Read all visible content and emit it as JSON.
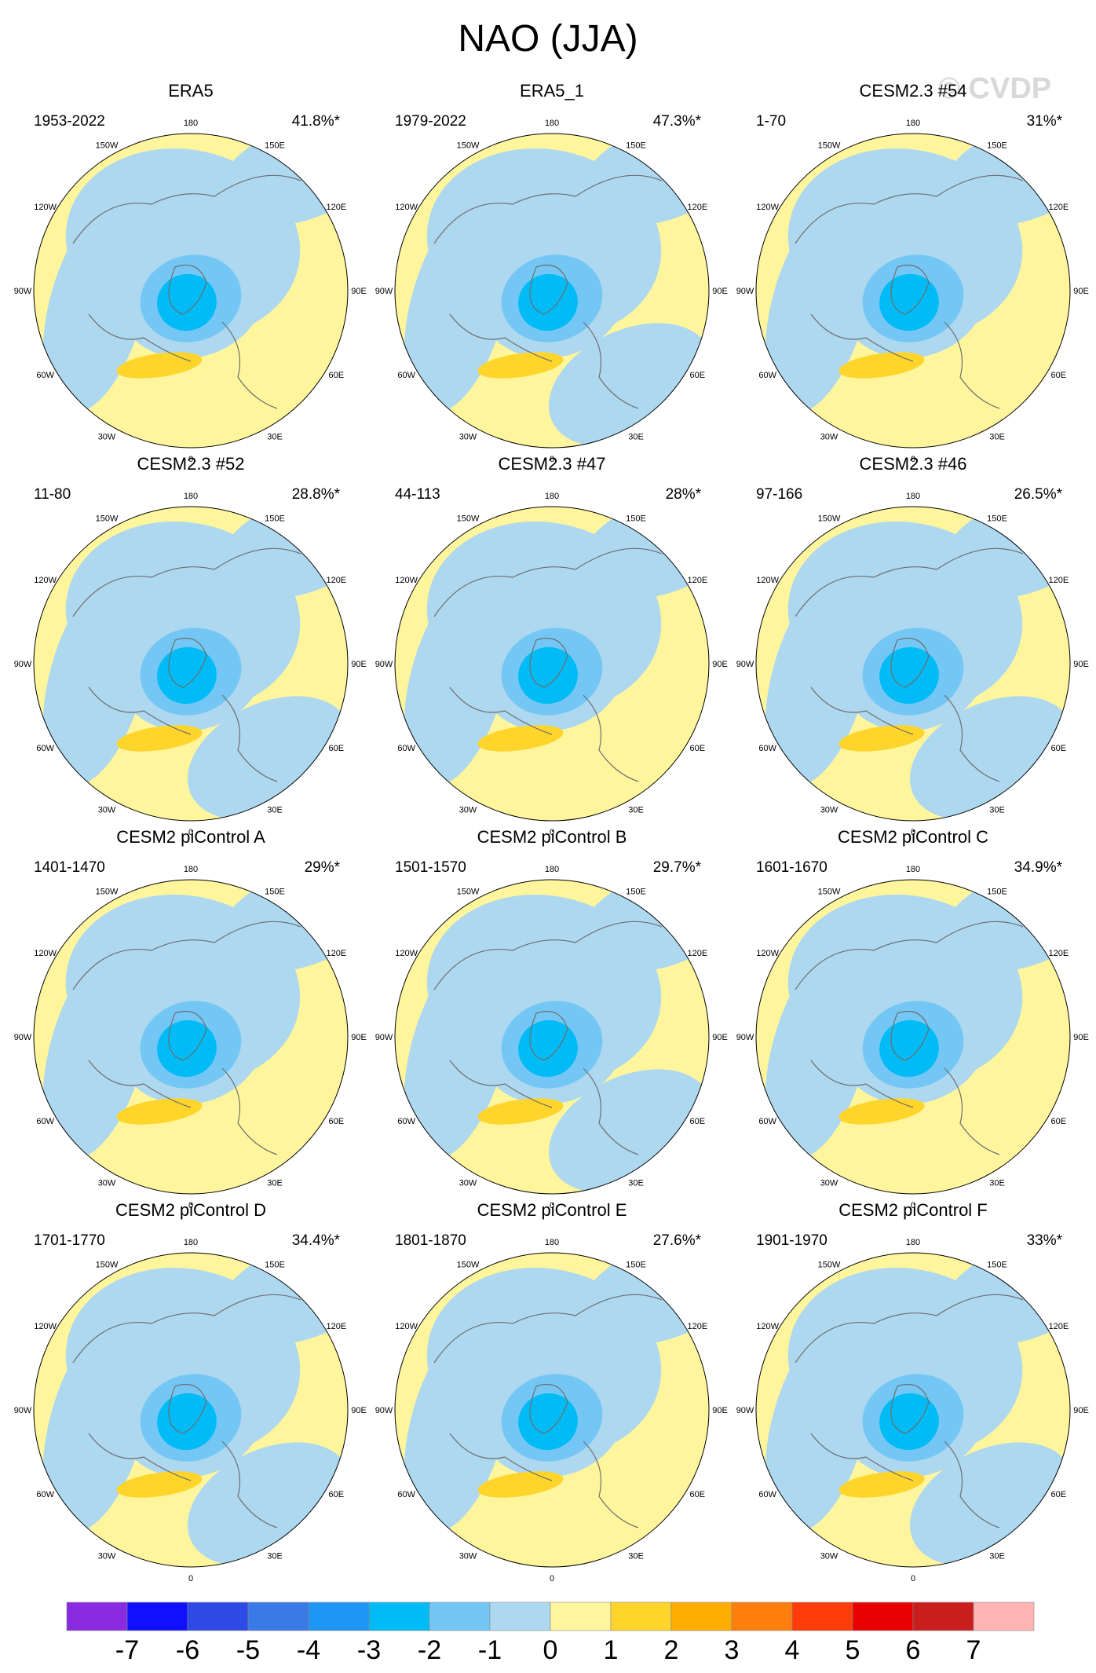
{
  "title": "NAO (JJA)",
  "watermark": "© CVDP",
  "colors": {
    "pos1": "#fff59d",
    "pos2": "#ffd52b",
    "neg1": "#add8f0",
    "neg2": "#74c7f4",
    "neg3": "#00bbf5",
    "coast": "#6e6e6e",
    "ring": "#000000"
  },
  "chart_data": {
    "type": "polar-map",
    "projection": "north-polar-stereographic",
    "longitude_labels": [
      "180",
      "150E",
      "120E",
      "90E",
      "60E",
      "30E",
      "0",
      "30W",
      "60W",
      "90W",
      "120W",
      "150W"
    ],
    "panels": [
      {
        "title": "ERA5",
        "period": "1953-2022",
        "pct": "41.8%*"
      },
      {
        "title": "ERA5_1",
        "period": "1979-2022",
        "pct": "47.3%*"
      },
      {
        "title": "CESM2.3 #54",
        "period": "1-70",
        "pct": "31%*"
      },
      {
        "title": "CESM2.3 #52",
        "period": "11-80",
        "pct": "28.8%*"
      },
      {
        "title": "CESM2.3 #47",
        "period": "44-113",
        "pct": "28%*"
      },
      {
        "title": "CESM2.3 #46",
        "period": "97-166",
        "pct": "26.5%*"
      },
      {
        "title": "CESM2 piControl A",
        "period": "1401-1470",
        "pct": "29%*"
      },
      {
        "title": "CESM2 piControl B",
        "period": "1501-1570",
        "pct": "29.7%*"
      },
      {
        "title": "CESM2 piControl C",
        "period": "1601-1670",
        "pct": "34.9%*"
      },
      {
        "title": "CESM2 piControl D",
        "period": "1701-1770",
        "pct": "34.4%*"
      },
      {
        "title": "CESM2 piControl E",
        "period": "1801-1870",
        "pct": "27.6%*"
      },
      {
        "title": "CESM2 piControl F",
        "period": "1901-1970",
        "pct": "33%*"
      }
    ],
    "colorbar": {
      "labels": [
        "-7",
        "-6",
        "-5",
        "-4",
        "-3",
        "-2",
        "-1",
        "0",
        "1",
        "2",
        "3",
        "4",
        "5",
        "6",
        "7"
      ],
      "colors": [
        "#8a2be2",
        "#1010ff",
        "#2d4ae6",
        "#3a7ae6",
        "#1e96f5",
        "#00bbf5",
        "#74c7f4",
        "#add8f0",
        "#fff59d",
        "#ffd52b",
        "#ffad00",
        "#ff7f0e",
        "#ff3c0a",
        "#e60000",
        "#c81e1e",
        "#ffb4b4"
      ]
    }
  }
}
